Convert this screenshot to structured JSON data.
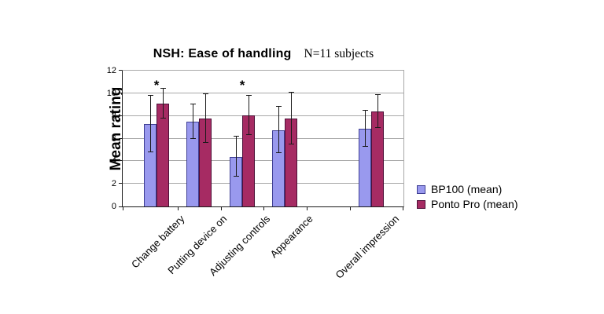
{
  "chart_data": {
    "type": "bar",
    "title": "NSH: Ease of handling",
    "subtitle": "N=11 subjects",
    "ylabel": "Mean rating",
    "xlabel": "",
    "ylim": [
      0,
      12
    ],
    "yticks": [
      0,
      2,
      4,
      6,
      8,
      10,
      12
    ],
    "grid": true,
    "legend_position": "right",
    "categories": [
      "Change battery",
      "Putting device on",
      "Adjusting controls",
      "Appearance",
      "",
      "Overall impression"
    ],
    "series": [
      {
        "name": "BP100 (mean)",
        "color": "#9999EE",
        "border_color": "#3F3F94",
        "values": [
          7.3,
          7.5,
          4.4,
          6.75,
          null,
          6.85
        ],
        "error_sd": [
          2.5,
          1.5,
          1.75,
          2.05,
          null,
          1.6
        ]
      },
      {
        "name": "Ponto Pro (mean)",
        "color": "#A62B63",
        "border_color": "#4D1038",
        "values": [
          9.1,
          7.8,
          8.05,
          7.75,
          null,
          8.4
        ],
        "error_sd": [
          1.3,
          2.15,
          1.75,
          2.3,
          null,
          1.45
        ]
      }
    ],
    "annotations": [
      {
        "slot": 0,
        "category": "Change battery",
        "text": "*",
        "y": 10.1
      },
      {
        "slot": 2,
        "category": "Adjusting controls",
        "text": "*",
        "y": 10.1
      }
    ]
  }
}
